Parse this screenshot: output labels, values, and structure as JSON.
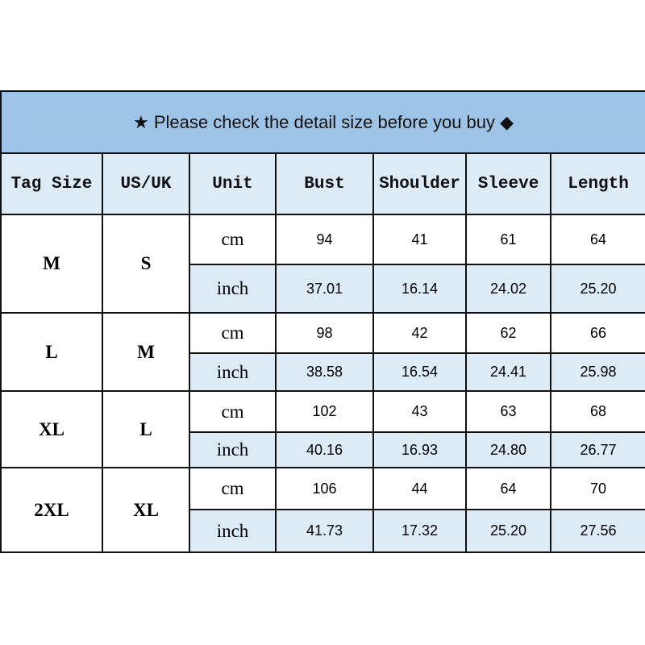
{
  "title": {
    "icon_left": "star-icon",
    "text": "★  Please check the detail size before you buy ◆",
    "icon_right": "diamond-icon"
  },
  "columns": [
    "Tag Size",
    "US/UK",
    "Unit",
    "Bust",
    "Shoulder",
    "Sleeve",
    "Length"
  ],
  "sizes": [
    {
      "tag": "M",
      "us_uk": "S",
      "cm": {
        "unit": "cm",
        "values": [
          "94",
          "41",
          "61",
          "64"
        ]
      },
      "inch": {
        "unit": "inch",
        "values": [
          "37.01",
          "16.14",
          "24.02",
          "25.20"
        ]
      }
    },
    {
      "tag": "L",
      "us_uk": "M",
      "cm": {
        "unit": "cm",
        "values": [
          "98",
          "42",
          "62",
          "66"
        ]
      },
      "inch": {
        "unit": "inch",
        "values": [
          "38.58",
          "16.54",
          "24.41",
          "25.98"
        ]
      }
    },
    {
      "tag": "XL",
      "us_uk": "L",
      "cm": {
        "unit": "cm",
        "values": [
          "102",
          "43",
          "63",
          "68"
        ]
      },
      "inch": {
        "unit": "inch",
        "values": [
          "40.16",
          "16.93",
          "24.80",
          "26.77"
        ]
      }
    },
    {
      "tag": "2XL",
      "us_uk": "XL",
      "cm": {
        "unit": "cm",
        "values": [
          "106",
          "44",
          "64",
          "70"
        ]
      },
      "inch": {
        "unit": "inch",
        "values": [
          "41.73",
          "17.32",
          "25.20",
          "27.56"
        ]
      }
    }
  ],
  "colors": {
    "title_bg": "#9dc3e6",
    "header_bg": "#ddebf7",
    "inch_row_bg": "#ddebf7",
    "border": "#111111"
  }
}
